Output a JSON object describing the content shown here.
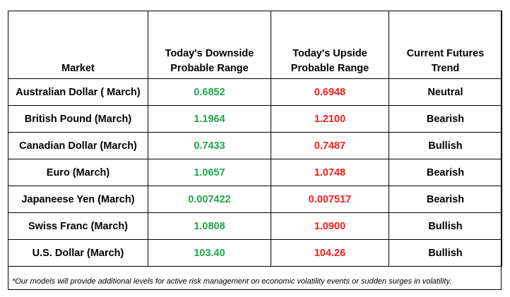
{
  "table": {
    "headers": {
      "market": "Market",
      "downside_line1": "Today's Downside",
      "downside_line2": "Probable Range",
      "upside_line1": "Today's Upside",
      "upside_line2": "Probable Range",
      "trend_line1": "Current Futures",
      "trend_line2": "Trend"
    },
    "rows": [
      {
        "market": "Australian Dollar ( March)",
        "downside": "0.6852",
        "upside": "0.6948",
        "trend": "Neutral"
      },
      {
        "market": "British Pound (March)",
        "downside": "1.1964",
        "upside": "1.2100",
        "trend": "Bearish"
      },
      {
        "market": "Canadian Dollar (March)",
        "downside": "0.7433",
        "upside": "0.7487",
        "trend": "Bullish"
      },
      {
        "market": "Euro (March)",
        "downside": "1.0657",
        "upside": "1.0748",
        "trend": "Bearish"
      },
      {
        "market": "Japaneese Yen (March)",
        "downside": "0.007422",
        "upside": "0.007517",
        "trend": "Bearish"
      },
      {
        "market": "Swiss Franc (March)",
        "downside": "1.0808",
        "upside": "1.0900",
        "trend": "Bullish"
      },
      {
        "market": "U.S. Dollar (March)",
        "downside": "103.40",
        "upside": "104.26",
        "trend": "Bullish"
      }
    ]
  },
  "footnote": "*Our models will provide additional levels for active risk management on economic volatility events or sudden surges in volatility.",
  "colors": {
    "downside": "#1ea64a",
    "upside": "#ff1a1a"
  }
}
